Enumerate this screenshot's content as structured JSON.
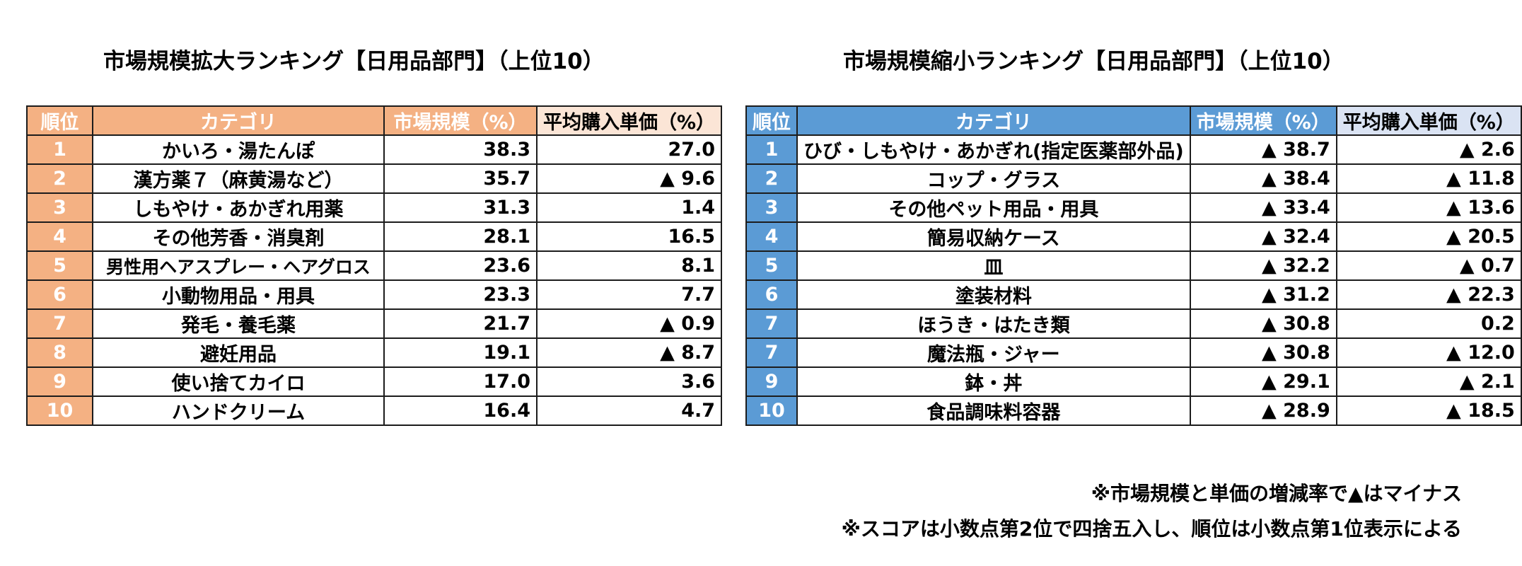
{
  "left": {
    "title": "市場規模拡大ランキング【日用品部門】（上位10）",
    "headers": [
      "順位",
      "カテゴリ",
      "市場規模（%）",
      "平均購入単価（%）"
    ],
    "rows": [
      [
        "1",
        "かいろ・湯たんぽ",
        "38.3",
        "27.0"
      ],
      [
        "2",
        "漢方薬７（麻黄湯など）",
        "35.7",
        "▲ 9.6"
      ],
      [
        "3",
        "しもやけ・あかぎれ用薬",
        "31.3",
        "1.4"
      ],
      [
        "4",
        "その他芳香・消臭剤",
        "28.1",
        "16.5"
      ],
      [
        "5",
        "男性用ヘアスプレー・ヘアグロス",
        "23.6",
        "8.1"
      ],
      [
        "6",
        "小動物用品・用具",
        "23.3",
        "7.7"
      ],
      [
        "7",
        "発毛・養毛薬",
        "21.7",
        "▲ 0.9"
      ],
      [
        "8",
        "避妊用品",
        "19.1",
        "▲ 8.7"
      ],
      [
        "9",
        "使い捨てカイロ",
        "17.0",
        "3.6"
      ],
      [
        "10",
        "ハンドクリーム",
        "16.4",
        "4.7"
      ]
    ]
  },
  "right": {
    "title": "市場規模縮小ランキング【日用品部門】（上位10）",
    "headers": [
      "順位",
      "カテゴリ",
      "市場規模（%）",
      "平均購入単価（%）"
    ],
    "rows": [
      [
        "1",
        "ひび・しもやけ・あかぎれ(指定医薬部外品)",
        "▲ 38.7",
        "▲ 2.6"
      ],
      [
        "2",
        "コップ・グラス",
        "▲ 38.4",
        "▲ 11.8"
      ],
      [
        "3",
        "その他ペット用品・用具",
        "▲ 33.4",
        "▲ 13.6"
      ],
      [
        "4",
        "簡易収納ケース",
        "▲ 32.4",
        "▲ 20.5"
      ],
      [
        "5",
        "皿",
        "▲ 32.2",
        "▲ 0.7"
      ],
      [
        "6",
        "塗装材料",
        "▲ 31.2",
        "▲ 22.3"
      ],
      [
        "7",
        "ほうき・はたき類",
        "▲ 30.8",
        "0.2"
      ],
      [
        "7",
        "魔法瓶・ジャー",
        "▲ 30.8",
        "▲ 12.0"
      ],
      [
        "9",
        "鉢・丼",
        "▲ 29.1",
        "▲ 2.1"
      ],
      [
        "10",
        "食品調味料容器",
        "▲ 28.9",
        "▲ 18.5"
      ]
    ]
  },
  "notes": [
    "※市場規模と単価の増減率で▲はマイナス",
    "※スコアは小数点第2位で四捨五入し、順位は小数点第1位表示による"
  ],
  "colors": {
    "left_header": "#f4b183",
    "left_header_light": "#fbe5d6",
    "right_header": "#5b9bd5",
    "right_header_light": "#dae3f3"
  }
}
